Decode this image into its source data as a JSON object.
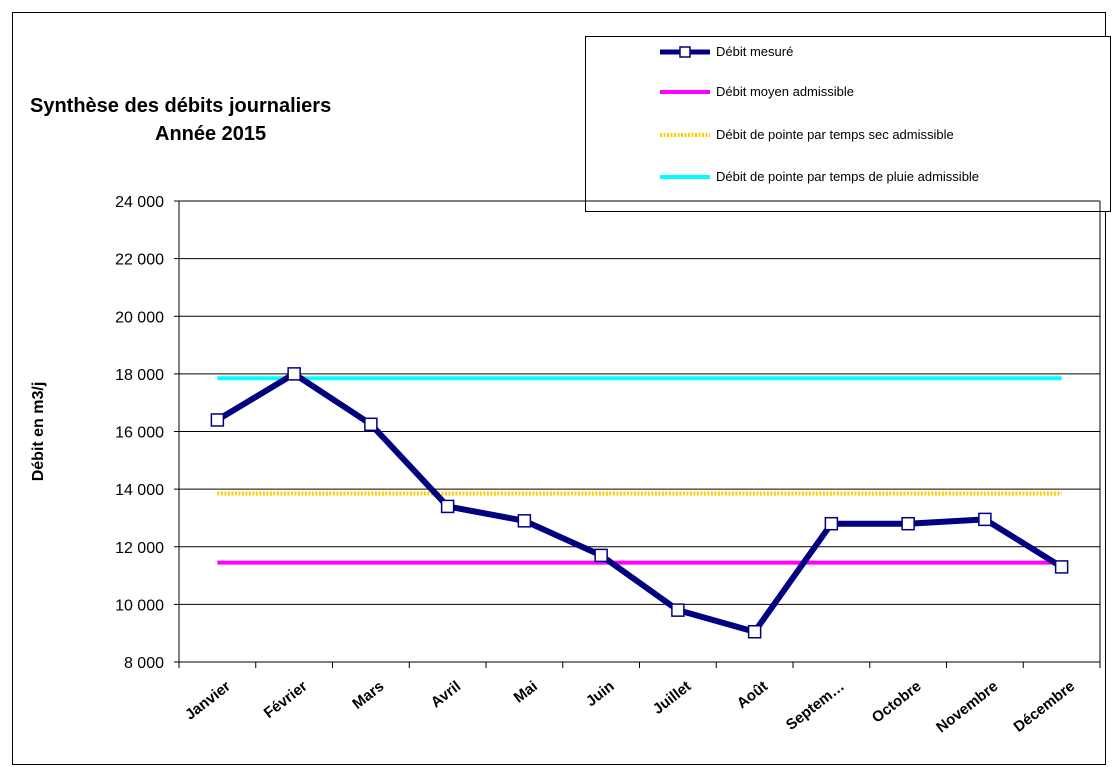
{
  "chart_data": {
    "type": "line",
    "title": "Synthèse des débits journaliers",
    "subtitle": "Année 2015",
    "ylabel": "Débit en m3/j",
    "xlabel": "",
    "ylim": [
      8000,
      24000
    ],
    "y_ticks": [
      8000,
      10000,
      12000,
      14000,
      16000,
      18000,
      20000,
      22000,
      24000
    ],
    "y_tick_labels": [
      "8 000",
      "10 000",
      "12 000",
      "14 000",
      "16 000",
      "18 000",
      "20 000",
      "22 000",
      "24 000"
    ],
    "grid": "horizontal",
    "legend_position": "top-right",
    "categories": [
      "Janvier",
      "Février",
      "Mars",
      "Avril",
      "Mai",
      "Juin",
      "Juillet",
      "Août",
      "Septem…",
      "Octobre",
      "Novembre",
      "Décembre"
    ],
    "series": [
      {
        "name": "Débit mesuré",
        "color": "#000080",
        "style": "solid-markers",
        "values": [
          16400,
          18000,
          16250,
          13400,
          12900,
          11700,
          9800,
          9050,
          12800,
          12800,
          12950,
          11300
        ]
      },
      {
        "name": "Débit moyen admissible",
        "color": "#ff00ff",
        "style": "solid",
        "values": [
          11450,
          11450,
          11450,
          11450,
          11450,
          11450,
          11450,
          11450,
          11450,
          11450,
          11450,
          11450
        ]
      },
      {
        "name": "Débit de pointe par temps sec admissible",
        "color": "#ffcc00",
        "style": "dotted",
        "values": [
          13850,
          13850,
          13850,
          13850,
          13850,
          13850,
          13850,
          13850,
          13850,
          13850,
          13850,
          13850
        ]
      },
      {
        "name": "Débit de pointe par temps de pluie admissible",
        "color": "#00ffff",
        "style": "solid",
        "values": [
          17850,
          17850,
          17850,
          17850,
          17850,
          17850,
          17850,
          17850,
          17850,
          17850,
          17850,
          17850
        ]
      }
    ]
  }
}
